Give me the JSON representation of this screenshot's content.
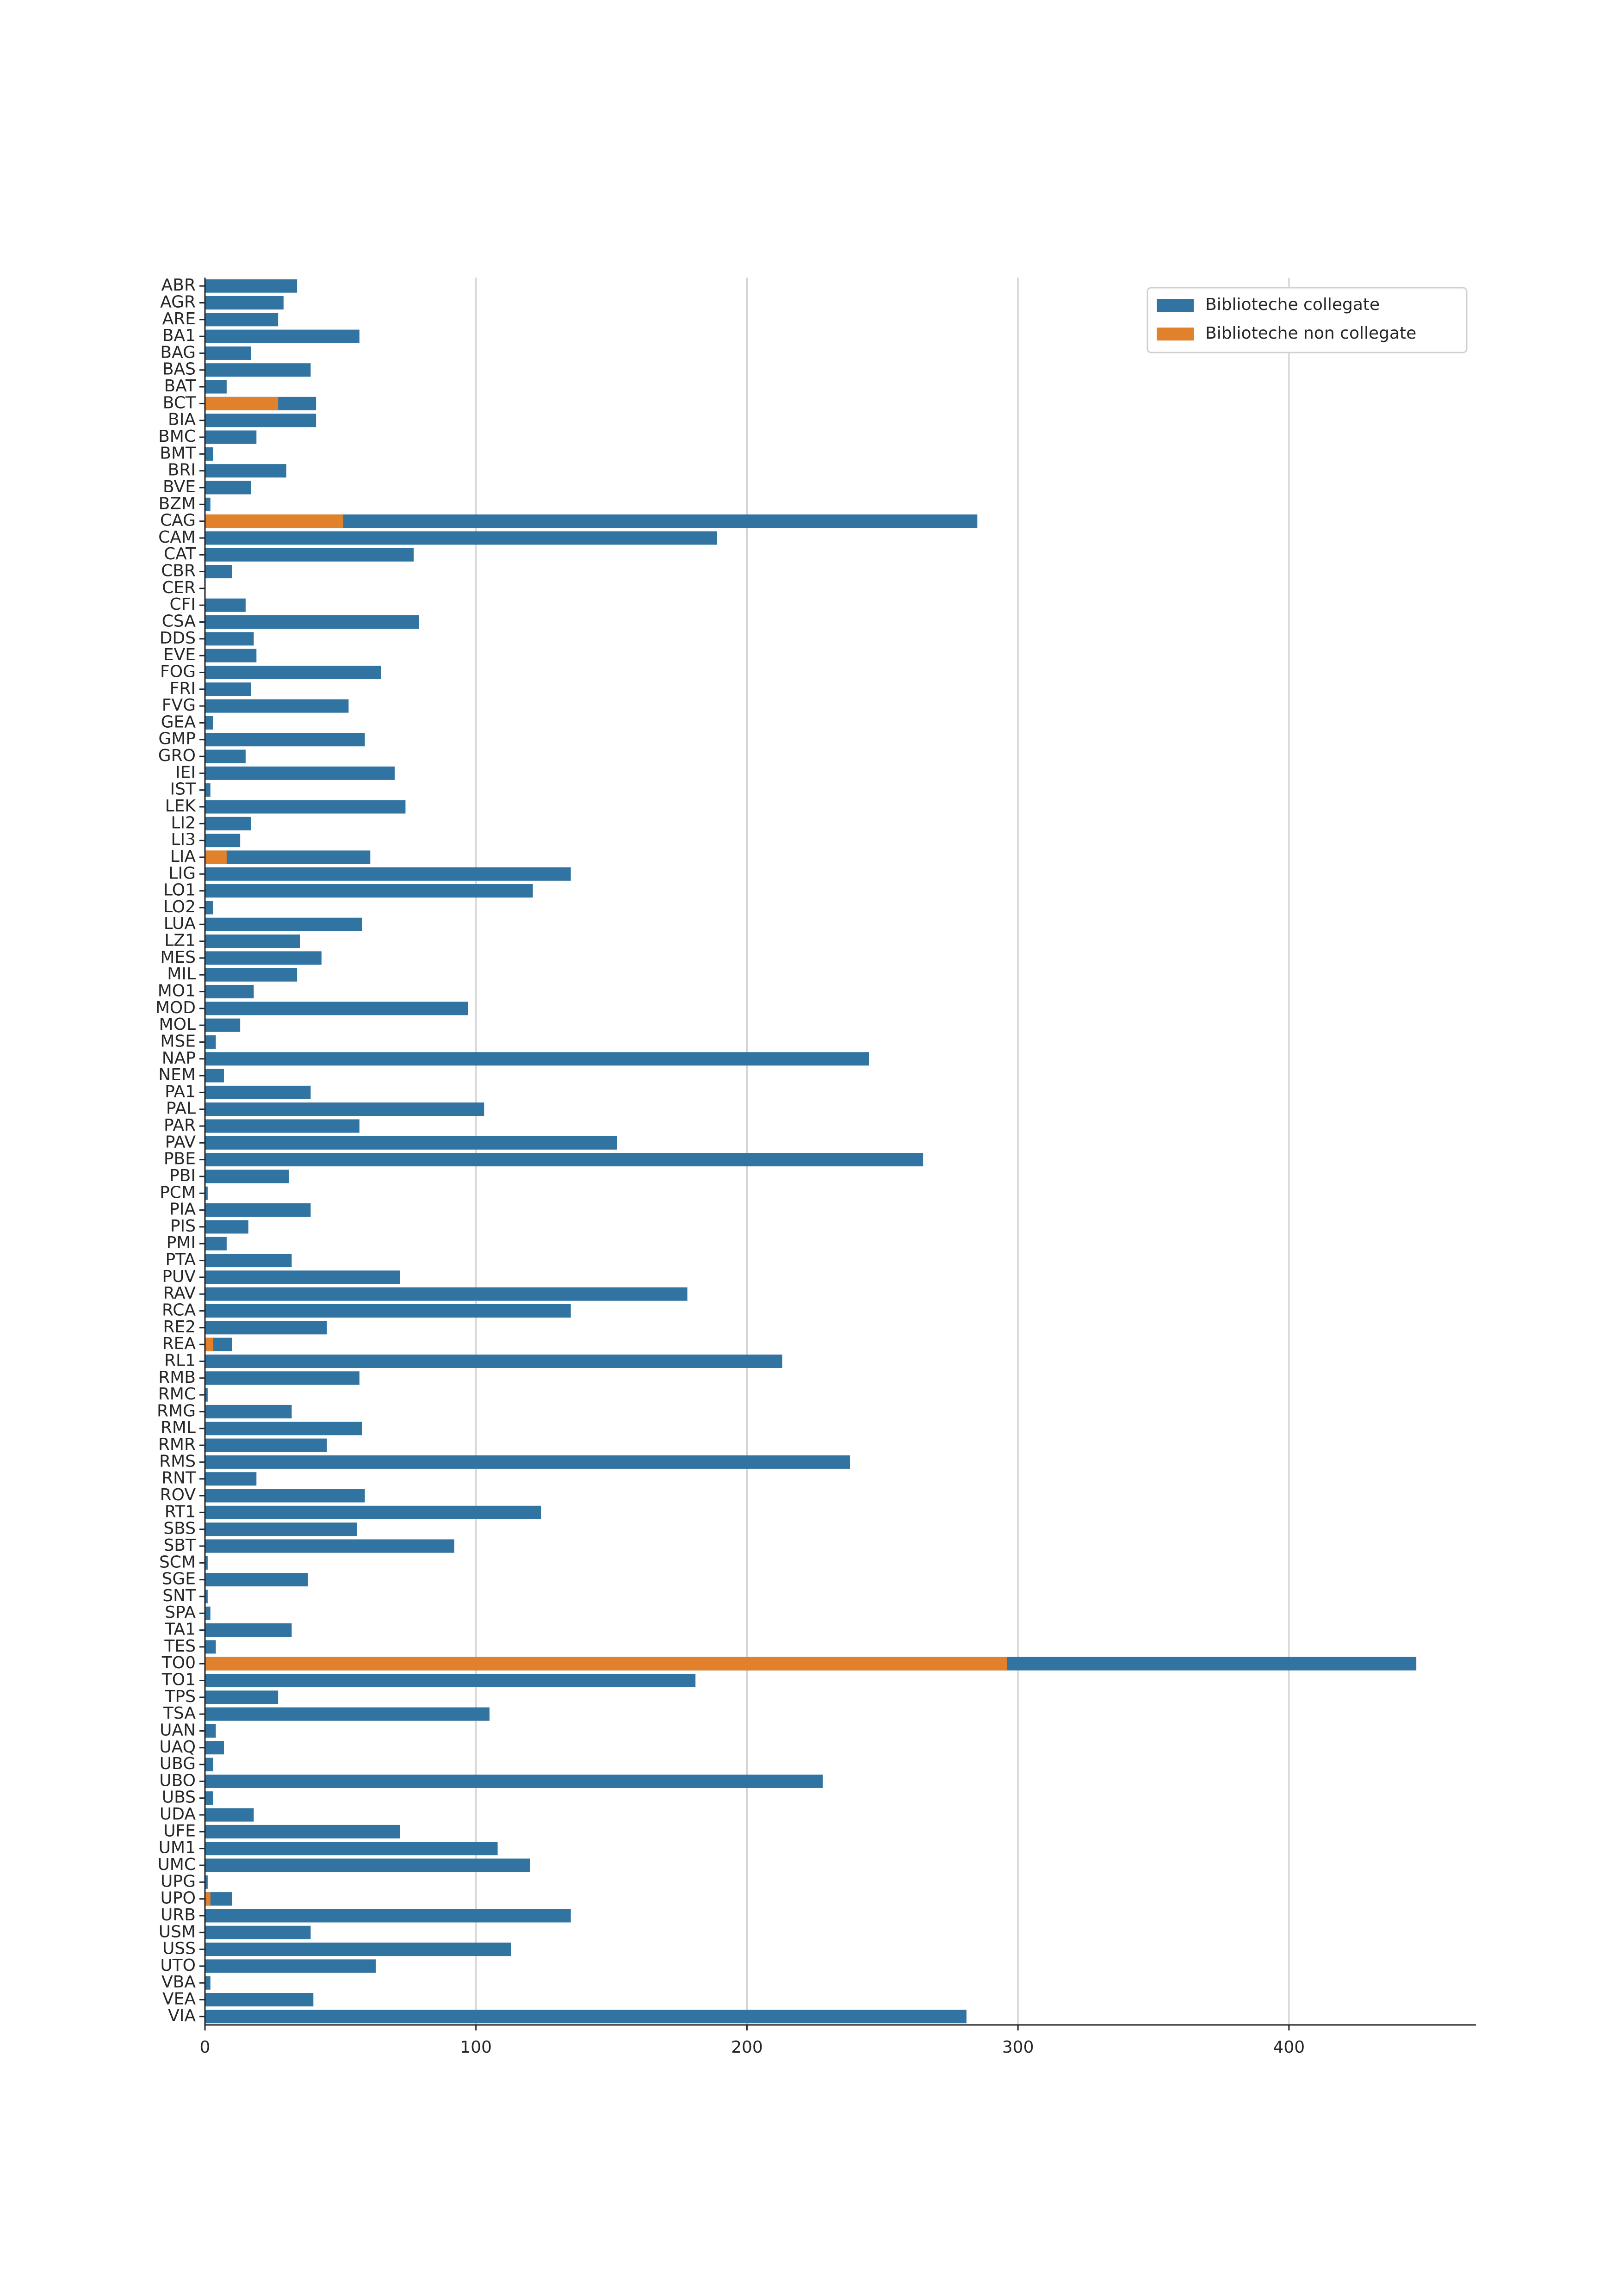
{
  "chart_data": {
    "type": "bar",
    "orientation": "horizontal",
    "overlay": true,
    "categories": [
      "ABR",
      "AGR",
      "ARE",
      "BA1",
      "BAG",
      "BAS",
      "BAT",
      "BCT",
      "BIA",
      "BMC",
      "BMT",
      "BRI",
      "BVE",
      "BZM",
      "CAG",
      "CAM",
      "CAT",
      "CBR",
      "CER",
      "CFI",
      "CSA",
      "DDS",
      "EVE",
      "FOG",
      "FRI",
      "FVG",
      "GEA",
      "GMP",
      "GRO",
      "IEI",
      "IST",
      "LEK",
      "LI2",
      "LI3",
      "LIA",
      "LIG",
      "LO1",
      "LO2",
      "LUA",
      "LZ1",
      "MES",
      "MIL",
      "MO1",
      "MOD",
      "MOL",
      "MSE",
      "NAP",
      "NEM",
      "PA1",
      "PAL",
      "PAR",
      "PAV",
      "PBE",
      "PBI",
      "PCM",
      "PIA",
      "PIS",
      "PMI",
      "PTA",
      "PUV",
      "RAV",
      "RCA",
      "RE2",
      "REA",
      "RL1",
      "RMB",
      "RMC",
      "RMG",
      "RML",
      "RMR",
      "RMS",
      "RNT",
      "ROV",
      "RT1",
      "SBS",
      "SBT",
      "SCM",
      "SGE",
      "SNT",
      "SPA",
      "TA1",
      "TES",
      "TO0",
      "TO1",
      "TPS",
      "TSA",
      "UAN",
      "UAQ",
      "UBG",
      "UBO",
      "UBS",
      "UDA",
      "UFE",
      "UM1",
      "UMC",
      "UPG",
      "UPO",
      "URB",
      "USM",
      "USS",
      "UTO",
      "VBA",
      "VEA",
      "VIA"
    ],
    "series": [
      {
        "name": "Biblioteche collegate",
        "color": "#3274a1",
        "values": [
          34,
          29,
          27,
          57,
          17,
          39,
          8,
          41,
          41,
          19,
          3,
          30,
          17,
          2,
          285,
          189,
          77,
          10,
          0,
          15,
          79,
          18,
          19,
          65,
          17,
          53,
          3,
          59,
          15,
          70,
          2,
          74,
          17,
          13,
          61,
          135,
          121,
          3,
          58,
          35,
          43,
          34,
          18,
          97,
          13,
          4,
          245,
          7,
          39,
          103,
          57,
          152,
          265,
          31,
          1,
          39,
          16,
          8,
          32,
          72,
          178,
          135,
          45,
          10,
          213,
          57,
          1,
          32,
          58,
          45,
          238,
          19,
          59,
          124,
          56,
          92,
          1,
          38,
          1,
          2,
          32,
          4,
          447,
          181,
          27,
          105,
          4,
          7,
          3,
          228,
          3,
          18,
          72,
          108,
          120,
          1,
          10,
          135,
          39,
          113,
          63,
          2,
          40,
          281
        ]
      },
      {
        "name": "Biblioteche non collegate",
        "color": "#e1812c",
        "values": [
          0,
          0,
          0,
          0,
          0,
          0,
          0,
          27,
          0,
          0,
          0,
          0,
          0,
          0,
          51,
          0,
          0,
          0,
          0,
          0,
          0,
          0,
          0,
          0,
          0,
          0,
          0,
          0,
          0,
          0,
          0,
          0,
          0,
          0,
          8,
          0,
          0,
          0,
          0,
          0,
          0,
          0,
          0,
          0,
          0,
          0,
          0,
          0,
          0,
          0,
          0,
          0,
          0,
          0,
          0,
          0,
          0,
          0,
          0,
          0,
          0,
          0,
          0,
          3,
          0,
          0,
          0,
          0,
          0,
          0,
          0,
          0,
          0,
          0,
          0,
          0,
          0,
          0,
          0,
          0,
          0,
          0,
          296,
          0,
          0,
          0,
          0,
          0,
          0,
          0,
          0,
          0,
          0,
          0,
          0,
          0,
          2,
          0,
          0,
          0,
          0,
          0,
          0,
          0
        ]
      }
    ],
    "xlim": [
      0,
      469
    ],
    "xticks": [
      0,
      100,
      200,
      300,
      400
    ],
    "grid": true,
    "legend": "upper right"
  }
}
